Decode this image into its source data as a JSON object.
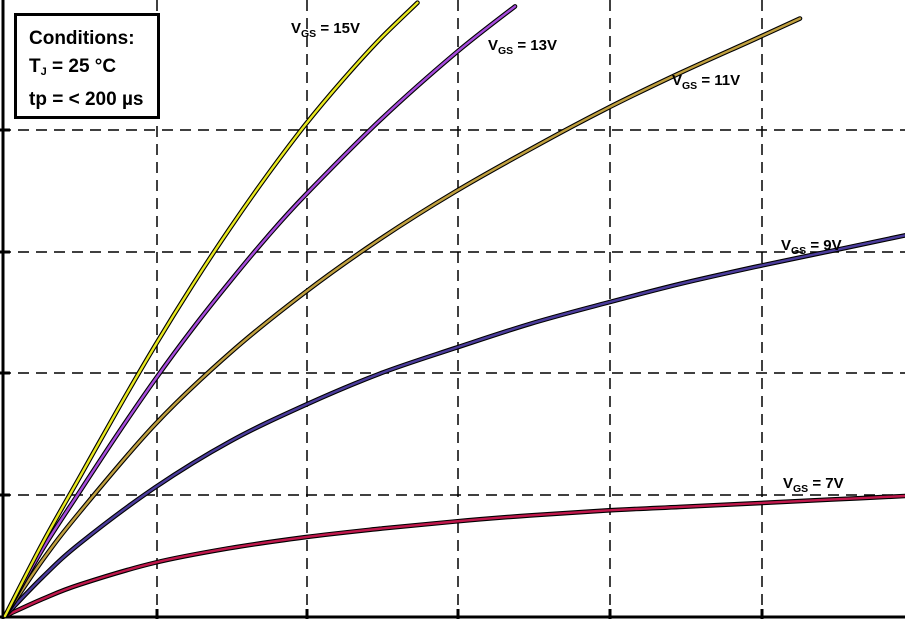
{
  "conditions": {
    "title": "Conditions:",
    "tj_symbol": "T",
    "tj_sub": "J",
    "tj_value": " = 25 °C",
    "tp_text": "tp = < 200 µs"
  },
  "chart_data": {
    "type": "line",
    "title": "",
    "xlabel": "",
    "ylabel": "",
    "xlim": [
      0,
      6
    ],
    "ylim": [
      0,
      5
    ],
    "grid": true,
    "grid_style": "dashed",
    "tick_labels_visible": false,
    "series": [
      {
        "name": "VGS = 15V",
        "label_main": "V",
        "label_sub": "GS",
        "label_rest": " = 15V",
        "color": "#e8e820",
        "x": [
          0,
          0.25,
          0.5,
          0.75,
          1.0,
          1.25,
          1.5,
          1.75,
          2.0,
          2.25,
          2.5,
          2.75
        ],
        "y": [
          0,
          0.6,
          1.15,
          1.7,
          2.23,
          2.73,
          3.2,
          3.64,
          4.05,
          4.42,
          4.76,
          5.06
        ]
      },
      {
        "name": "VGS = 13V",
        "label_main": "V",
        "label_sub": "GS",
        "label_rest": " = 13V",
        "color": "#a64cdc",
        "x": [
          0,
          0.25,
          0.5,
          0.75,
          1.0,
          1.25,
          1.5,
          1.75,
          2.0,
          2.5,
          3.0,
          3.4
        ],
        "y": [
          0,
          0.55,
          1.03,
          1.5,
          1.95,
          2.37,
          2.76,
          3.13,
          3.47,
          4.09,
          4.64,
          5.03
        ]
      },
      {
        "name": "VGS = 11V",
        "label_main": "V",
        "label_sub": "GS",
        "label_rest": " = 11V",
        "color": "#c0a040",
        "x": [
          0,
          0.25,
          0.5,
          1.0,
          1.5,
          2.0,
          2.5,
          3.0,
          3.5,
          4.0,
          4.5,
          5.0,
          5.3
        ],
        "y": [
          0,
          0.46,
          0.86,
          1.58,
          2.17,
          2.67,
          3.11,
          3.5,
          3.85,
          4.18,
          4.48,
          4.76,
          4.93
        ]
      },
      {
        "name": "VGS = 9V",
        "label_main": "V",
        "label_sub": "GS",
        "label_rest": " = 9V",
        "color": "#4b3c9c",
        "x": [
          0,
          0.25,
          0.5,
          1.0,
          1.5,
          2.0,
          2.5,
          3.0,
          3.5,
          4.0,
          4.5,
          5.0,
          5.5,
          6.0
        ],
        "y": [
          0,
          0.32,
          0.6,
          1.06,
          1.44,
          1.74,
          2.0,
          2.21,
          2.41,
          2.58,
          2.74,
          2.88,
          3.01,
          3.14
        ]
      },
      {
        "name": "VGS = 7V",
        "label_main": "V",
        "label_sub": "GS",
        "label_rest": " = 7V",
        "color": "#c0184c",
        "x": [
          0,
          0.25,
          0.5,
          1.0,
          1.5,
          2.0,
          2.5,
          3.0,
          3.5,
          4.0,
          4.5,
          5.0,
          5.5,
          6.0
        ],
        "y": [
          0,
          0.14,
          0.26,
          0.44,
          0.56,
          0.65,
          0.72,
          0.78,
          0.83,
          0.87,
          0.9,
          0.93,
          0.96,
          0.99
        ]
      }
    ]
  }
}
